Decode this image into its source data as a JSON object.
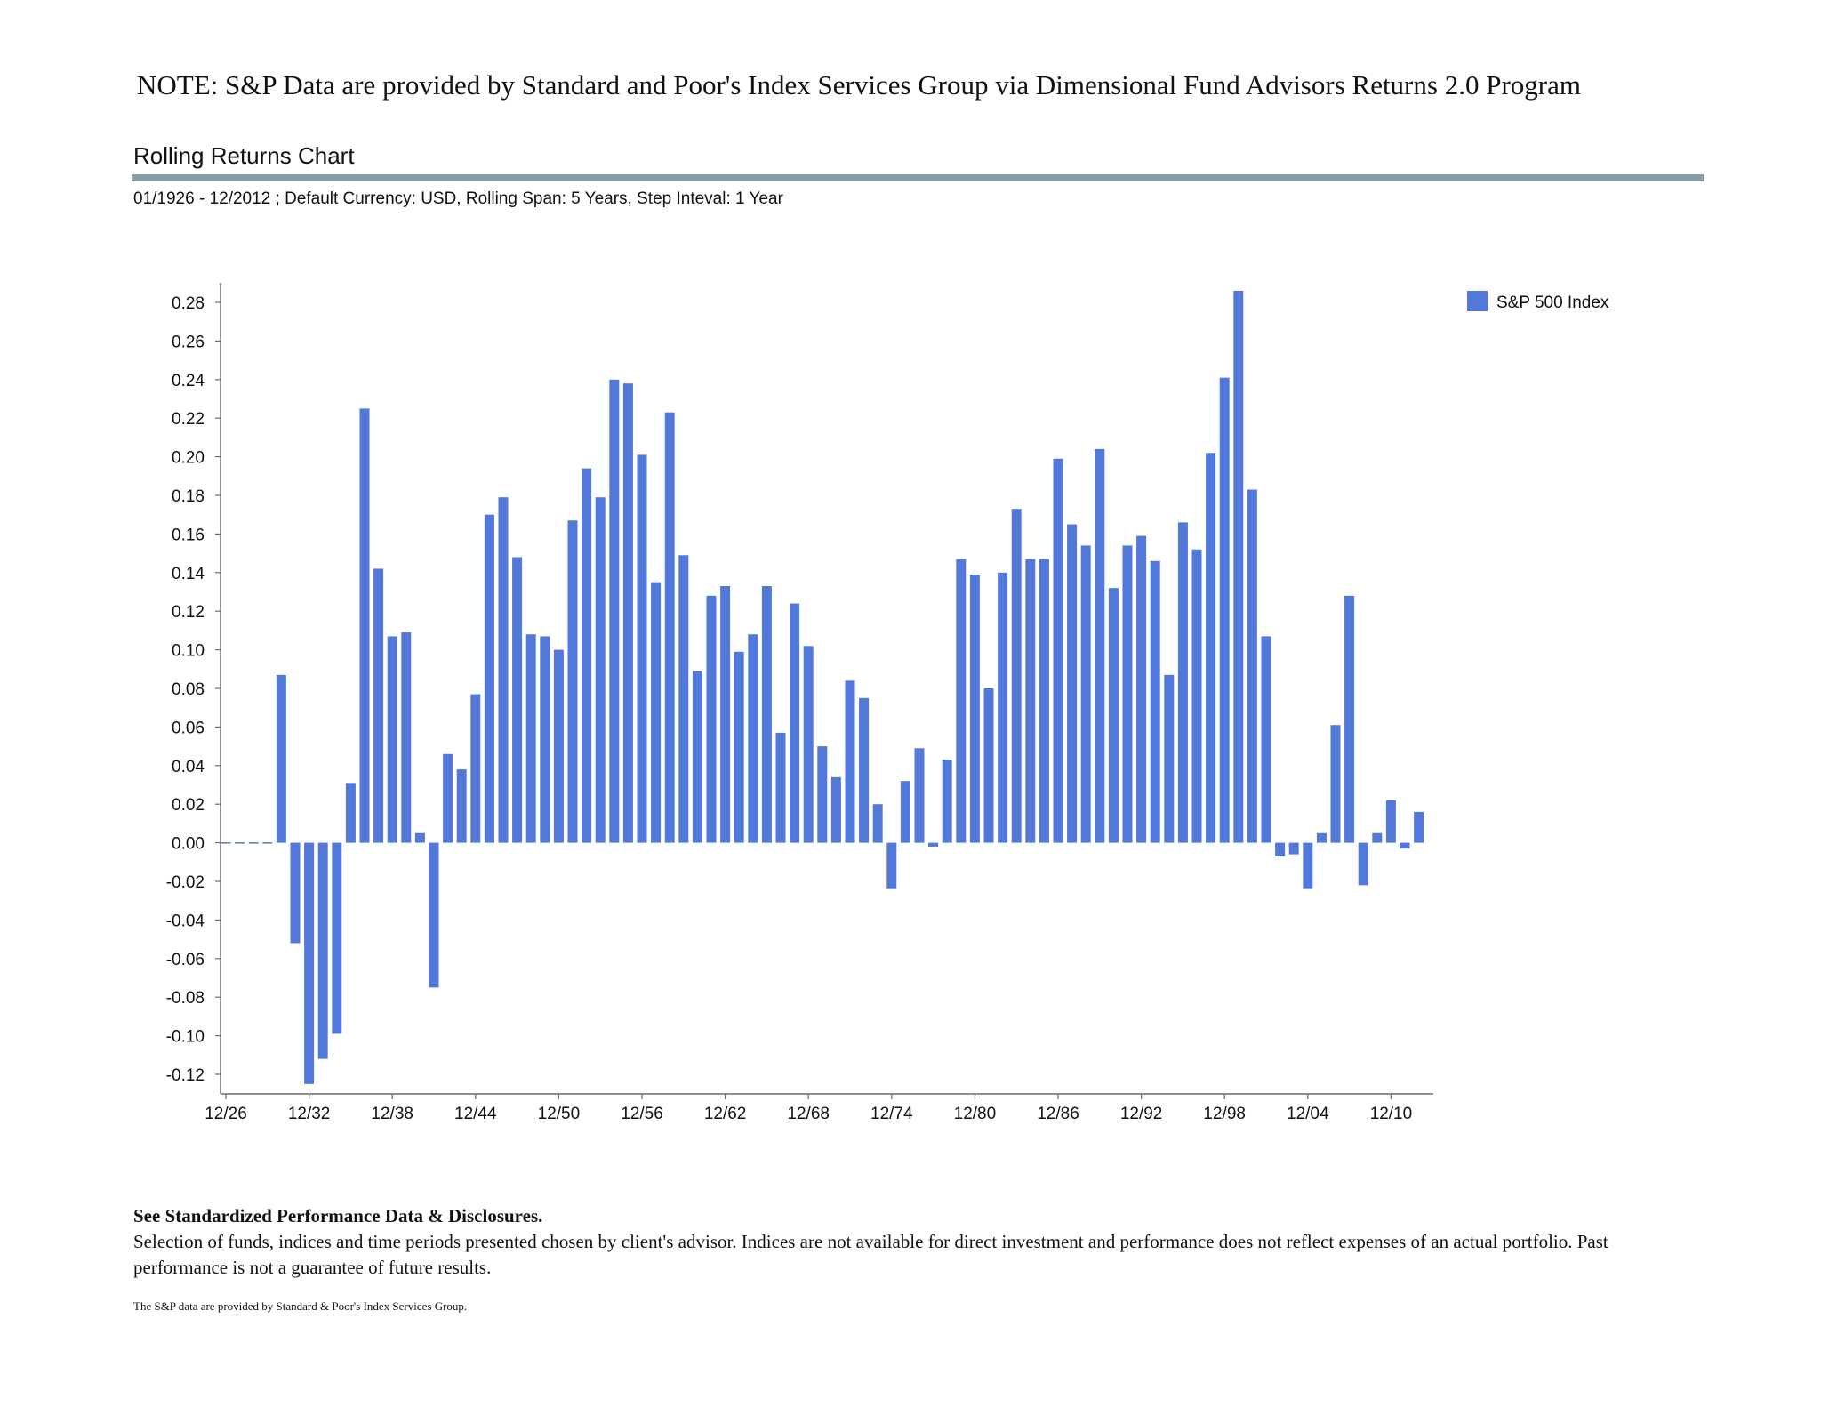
{
  "note": "NOTE: S&P Data are provided by Standard and Poor's Index Services Group via Dimensional Fund Advisors Returns 2.0 Program",
  "report": {
    "title": "Rolling Returns Chart",
    "subtitle": "01/1926 - 12/2012 ; Default Currency: USD, Rolling Span: 5 Years, Step Inteval: 1 Year",
    "rule_color": "#879ea7"
  },
  "chart_data": {
    "type": "bar",
    "title": "",
    "xlabel": "",
    "ylabel": "",
    "ylim": [
      -0.13,
      0.29
    ],
    "yticks": [
      "0.28",
      "0.26",
      "0.24",
      "0.22",
      "0.20",
      "0.18",
      "0.16",
      "0.14",
      "0.12",
      "0.10",
      "0.08",
      "0.06",
      "0.04",
      "0.02",
      "0.00",
      "-0.02",
      "-0.04",
      "-0.06",
      "-0.08",
      "-0.10",
      "-0.12"
    ],
    "xtick_labels": [
      "12/26",
      "12/32",
      "12/38",
      "12/44",
      "12/50",
      "12/56",
      "12/62",
      "12/68",
      "12/74",
      "12/80",
      "12/86",
      "12/92",
      "12/98",
      "12/04",
      "12/10"
    ],
    "grid": false,
    "legend_position": "top-right",
    "series": [
      {
        "name": "S&P 500 Index",
        "color": "#5279d9",
        "values": [
          0,
          0,
          0,
          0,
          0.087,
          -0.052,
          -0.125,
          -0.112,
          -0.099,
          0.031,
          0.225,
          0.142,
          0.107,
          0.109,
          0.005,
          -0.075,
          0.046,
          0.038,
          0.077,
          0.17,
          0.179,
          0.148,
          0.108,
          0.107,
          0.1,
          0.167,
          0.194,
          0.179,
          0.24,
          0.238,
          0.201,
          0.135,
          0.223,
          0.149,
          0.089,
          0.128,
          0.133,
          0.099,
          0.108,
          0.133,
          0.057,
          0.124,
          0.102,
          0.05,
          0.034,
          0.084,
          0.075,
          0.02,
          -0.024,
          0.032,
          0.049,
          -0.002,
          0.043,
          0.147,
          0.139,
          0.08,
          0.14,
          0.173,
          0.147,
          0.147,
          0.199,
          0.165,
          0.154,
          0.204,
          0.132,
          0.154,
          0.159,
          0.146,
          0.087,
          0.166,
          0.152,
          0.202,
          0.241,
          0.286,
          0.183,
          0.107,
          -0.007,
          -0.006,
          -0.024,
          0.005,
          0.061,
          0.128,
          -0.022,
          0.005,
          0.022,
          -0.003,
          0.016
        ]
      }
    ]
  },
  "disclosures": {
    "heading": "See Standardized Performance Data & Disclosures.",
    "body": "Selection of funds, indices and time periods presented chosen by client's advisor. Indices are not available for direct investment and performance does not reflect expenses of an actual portfolio. Past performance is not a guarantee of future results.",
    "small_print": "The S&P data are provided by Standard & Poor's Index Services Group."
  }
}
